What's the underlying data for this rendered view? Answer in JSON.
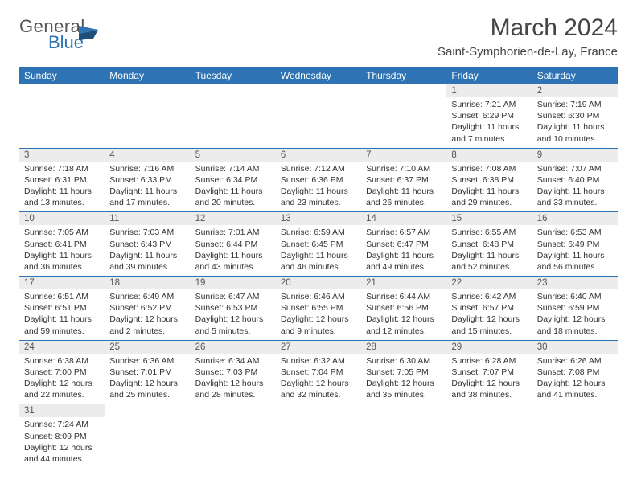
{
  "brand": {
    "general": "Genera",
    "l": "l",
    "blue": "Blue"
  },
  "colors": {
    "header_bg": "#2e74b5",
    "header_fg": "#ffffff",
    "daynum_bg": "#ececec",
    "row_border": "#2e74b5",
    "text": "#333333"
  },
  "title": "March 2024",
  "location": "Saint-Symphorien-de-Lay, France",
  "weekdays": [
    "Sunday",
    "Monday",
    "Tuesday",
    "Wednesday",
    "Thursday",
    "Friday",
    "Saturday"
  ],
  "weeks": [
    [
      {
        "empty": true
      },
      {
        "empty": true
      },
      {
        "empty": true
      },
      {
        "empty": true
      },
      {
        "empty": true
      },
      {
        "day": "1",
        "sunrise": "Sunrise: 7:21 AM",
        "sunset": "Sunset: 6:29 PM",
        "daylight": "Daylight: 11 hours and 7 minutes."
      },
      {
        "day": "2",
        "sunrise": "Sunrise: 7:19 AM",
        "sunset": "Sunset: 6:30 PM",
        "daylight": "Daylight: 11 hours and 10 minutes."
      }
    ],
    [
      {
        "day": "3",
        "sunrise": "Sunrise: 7:18 AM",
        "sunset": "Sunset: 6:31 PM",
        "daylight": "Daylight: 11 hours and 13 minutes."
      },
      {
        "day": "4",
        "sunrise": "Sunrise: 7:16 AM",
        "sunset": "Sunset: 6:33 PM",
        "daylight": "Daylight: 11 hours and 17 minutes."
      },
      {
        "day": "5",
        "sunrise": "Sunrise: 7:14 AM",
        "sunset": "Sunset: 6:34 PM",
        "daylight": "Daylight: 11 hours and 20 minutes."
      },
      {
        "day": "6",
        "sunrise": "Sunrise: 7:12 AM",
        "sunset": "Sunset: 6:36 PM",
        "daylight": "Daylight: 11 hours and 23 minutes."
      },
      {
        "day": "7",
        "sunrise": "Sunrise: 7:10 AM",
        "sunset": "Sunset: 6:37 PM",
        "daylight": "Daylight: 11 hours and 26 minutes."
      },
      {
        "day": "8",
        "sunrise": "Sunrise: 7:08 AM",
        "sunset": "Sunset: 6:38 PM",
        "daylight": "Daylight: 11 hours and 29 minutes."
      },
      {
        "day": "9",
        "sunrise": "Sunrise: 7:07 AM",
        "sunset": "Sunset: 6:40 PM",
        "daylight": "Daylight: 11 hours and 33 minutes."
      }
    ],
    [
      {
        "day": "10",
        "sunrise": "Sunrise: 7:05 AM",
        "sunset": "Sunset: 6:41 PM",
        "daylight": "Daylight: 11 hours and 36 minutes."
      },
      {
        "day": "11",
        "sunrise": "Sunrise: 7:03 AM",
        "sunset": "Sunset: 6:43 PM",
        "daylight": "Daylight: 11 hours and 39 minutes."
      },
      {
        "day": "12",
        "sunrise": "Sunrise: 7:01 AM",
        "sunset": "Sunset: 6:44 PM",
        "daylight": "Daylight: 11 hours and 43 minutes."
      },
      {
        "day": "13",
        "sunrise": "Sunrise: 6:59 AM",
        "sunset": "Sunset: 6:45 PM",
        "daylight": "Daylight: 11 hours and 46 minutes."
      },
      {
        "day": "14",
        "sunrise": "Sunrise: 6:57 AM",
        "sunset": "Sunset: 6:47 PM",
        "daylight": "Daylight: 11 hours and 49 minutes."
      },
      {
        "day": "15",
        "sunrise": "Sunrise: 6:55 AM",
        "sunset": "Sunset: 6:48 PM",
        "daylight": "Daylight: 11 hours and 52 minutes."
      },
      {
        "day": "16",
        "sunrise": "Sunrise: 6:53 AM",
        "sunset": "Sunset: 6:49 PM",
        "daylight": "Daylight: 11 hours and 56 minutes."
      }
    ],
    [
      {
        "day": "17",
        "sunrise": "Sunrise: 6:51 AM",
        "sunset": "Sunset: 6:51 PM",
        "daylight": "Daylight: 11 hours and 59 minutes."
      },
      {
        "day": "18",
        "sunrise": "Sunrise: 6:49 AM",
        "sunset": "Sunset: 6:52 PM",
        "daylight": "Daylight: 12 hours and 2 minutes."
      },
      {
        "day": "19",
        "sunrise": "Sunrise: 6:47 AM",
        "sunset": "Sunset: 6:53 PM",
        "daylight": "Daylight: 12 hours and 5 minutes."
      },
      {
        "day": "20",
        "sunrise": "Sunrise: 6:46 AM",
        "sunset": "Sunset: 6:55 PM",
        "daylight": "Daylight: 12 hours and 9 minutes."
      },
      {
        "day": "21",
        "sunrise": "Sunrise: 6:44 AM",
        "sunset": "Sunset: 6:56 PM",
        "daylight": "Daylight: 12 hours and 12 minutes."
      },
      {
        "day": "22",
        "sunrise": "Sunrise: 6:42 AM",
        "sunset": "Sunset: 6:57 PM",
        "daylight": "Daylight: 12 hours and 15 minutes."
      },
      {
        "day": "23",
        "sunrise": "Sunrise: 6:40 AM",
        "sunset": "Sunset: 6:59 PM",
        "daylight": "Daylight: 12 hours and 18 minutes."
      }
    ],
    [
      {
        "day": "24",
        "sunrise": "Sunrise: 6:38 AM",
        "sunset": "Sunset: 7:00 PM",
        "daylight": "Daylight: 12 hours and 22 minutes."
      },
      {
        "day": "25",
        "sunrise": "Sunrise: 6:36 AM",
        "sunset": "Sunset: 7:01 PM",
        "daylight": "Daylight: 12 hours and 25 minutes."
      },
      {
        "day": "26",
        "sunrise": "Sunrise: 6:34 AM",
        "sunset": "Sunset: 7:03 PM",
        "daylight": "Daylight: 12 hours and 28 minutes."
      },
      {
        "day": "27",
        "sunrise": "Sunrise: 6:32 AM",
        "sunset": "Sunset: 7:04 PM",
        "daylight": "Daylight: 12 hours and 32 minutes."
      },
      {
        "day": "28",
        "sunrise": "Sunrise: 6:30 AM",
        "sunset": "Sunset: 7:05 PM",
        "daylight": "Daylight: 12 hours and 35 minutes."
      },
      {
        "day": "29",
        "sunrise": "Sunrise: 6:28 AM",
        "sunset": "Sunset: 7:07 PM",
        "daylight": "Daylight: 12 hours and 38 minutes."
      },
      {
        "day": "30",
        "sunrise": "Sunrise: 6:26 AM",
        "sunset": "Sunset: 7:08 PM",
        "daylight": "Daylight: 12 hours and 41 minutes."
      }
    ],
    [
      {
        "day": "31",
        "sunrise": "Sunrise: 7:24 AM",
        "sunset": "Sunset: 8:09 PM",
        "daylight": "Daylight: 12 hours and 44 minutes."
      },
      {
        "empty": true
      },
      {
        "empty": true
      },
      {
        "empty": true
      },
      {
        "empty": true
      },
      {
        "empty": true
      },
      {
        "empty": true
      }
    ]
  ]
}
